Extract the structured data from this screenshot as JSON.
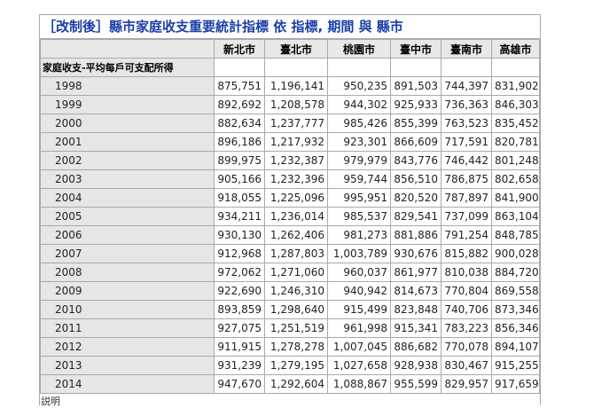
{
  "title": "［改制後］縣市家庭收支重要統計指標 依 指標, 期間 與 縣市",
  "columns": [
    "新北市",
    "臺北市",
    "桃園市",
    "臺中市",
    "臺南市",
    "高雄市"
  ],
  "category_label": "家庭收支-平均每戶可支配所得",
  "rows": [
    {
      "year": "1998",
      "values": [
        "875,751",
        "1,196,141",
        "950,235",
        "891,503",
        "744,397",
        "831,902"
      ]
    },
    {
      "year": "1999",
      "values": [
        "892,692",
        "1,208,578",
        "944,302",
        "925,933",
        "736,363",
        "846,303"
      ]
    },
    {
      "year": "2000",
      "values": [
        "882,634",
        "1,237,777",
        "985,426",
        "855,399",
        "763,523",
        "835,452"
      ]
    },
    {
      "year": "2001",
      "values": [
        "896,186",
        "1,217,932",
        "923,301",
        "866,609",
        "717,591",
        "820,781"
      ]
    },
    {
      "year": "2002",
      "values": [
        "899,975",
        "1,232,387",
        "979,979",
        "843,776",
        "746,442",
        "801,248"
      ]
    },
    {
      "year": "2003",
      "values": [
        "905,166",
        "1,232,396",
        "959,744",
        "856,510",
        "786,875",
        "802,658"
      ]
    },
    {
      "year": "2004",
      "values": [
        "918,055",
        "1,225,096",
        "995,951",
        "820,520",
        "787,897",
        "841,900"
      ]
    },
    {
      "year": "2005",
      "values": [
        "934,211",
        "1,236,014",
        "985,537",
        "829,541",
        "737,099",
        "863,104"
      ]
    },
    {
      "year": "2006",
      "values": [
        "930,130",
        "1,262,406",
        "981,273",
        "881,886",
        "791,254",
        "848,785"
      ]
    },
    {
      "year": "2007",
      "values": [
        "912,968",
        "1,287,803",
        "1,003,789",
        "930,676",
        "815,882",
        "900,028"
      ]
    },
    {
      "year": "2008",
      "values": [
        "972,062",
        "1,271,060",
        "960,037",
        "861,977",
        "810,038",
        "884,720"
      ]
    },
    {
      "year": "2009",
      "values": [
        "922,690",
        "1,246,310",
        "940,942",
        "814,673",
        "770,804",
        "869,558"
      ]
    },
    {
      "year": "2010",
      "values": [
        "893,859",
        "1,298,640",
        "915,499",
        "823,848",
        "740,706",
        "873,346"
      ]
    },
    {
      "year": "2011",
      "values": [
        "927,075",
        "1,251,519",
        "961,998",
        "915,341",
        "783,223",
        "856,346"
      ]
    },
    {
      "year": "2012",
      "values": [
        "911,915",
        "1,278,278",
        "1,007,045",
        "886,682",
        "770,078",
        "894,107"
      ]
    },
    {
      "year": "2013",
      "values": [
        "931,239",
        "1,279,195",
        "1,027,658",
        "928,938",
        "830,467",
        "915,255"
      ]
    },
    {
      "year": "2014",
      "values": [
        "947,670",
        "1,292,604",
        "1,088,867",
        "955,599",
        "829,957",
        "917,659"
      ]
    }
  ],
  "footer_text": "説明"
}
